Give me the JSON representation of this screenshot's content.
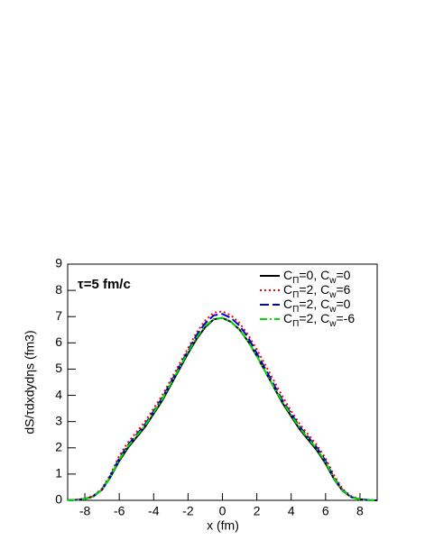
{
  "chart_data": {
    "type": "line",
    "annotation": "τ=5 fm/c",
    "x_label": "x (fm)",
    "y_label": "dS/τdxdydηs (fm3)",
    "xlim": [
      -9,
      9
    ],
    "xticks": [
      -8,
      -6,
      -4,
      -2,
      0,
      2,
      4,
      6,
      8
    ],
    "ylim": [
      0,
      9
    ],
    "yticks": [
      0,
      1,
      2,
      3,
      4,
      5,
      6,
      7,
      8,
      9
    ],
    "legend": "upper right",
    "x": [
      -9,
      -8.5,
      -8,
      -7.5,
      -7,
      -6.5,
      -6,
      -5.5,
      -5,
      -4.5,
      -4,
      -3.5,
      -3,
      -2.5,
      -2,
      -1.5,
      -1,
      -0.5,
      0,
      0.5,
      1,
      1.5,
      2,
      2.5,
      3,
      3.5,
      4,
      4.5,
      5,
      5.5,
      6,
      6.5,
      7,
      7.5,
      8,
      8.5,
      9
    ],
    "series": [
      {
        "name": "CΠ=0, Cw=0",
        "color": "#000000",
        "dash": "solid",
        "values": [
          0,
          0.02,
          0.05,
          0.15,
          0.4,
          0.9,
          1.5,
          2.0,
          2.4,
          2.8,
          3.3,
          3.8,
          4.4,
          5.0,
          5.6,
          6.15,
          6.6,
          6.9,
          6.95,
          6.8,
          6.5,
          6.05,
          5.5,
          4.9,
          4.3,
          3.7,
          3.2,
          2.7,
          2.3,
          1.9,
          1.4,
          0.8,
          0.35,
          0.12,
          0.04,
          0.01,
          0
        ]
      },
      {
        "name": "CΠ=2, Cw=6",
        "color": "#ff0000",
        "dash": "dotted",
        "values": [
          0,
          0.02,
          0.06,
          0.18,
          0.45,
          1.0,
          1.7,
          2.2,
          2.6,
          3.0,
          3.5,
          4.0,
          4.6,
          5.2,
          5.8,
          6.4,
          6.85,
          7.15,
          7.2,
          7.05,
          6.75,
          6.3,
          5.75,
          5.15,
          4.55,
          3.95,
          3.4,
          2.9,
          2.5,
          2.1,
          1.6,
          0.95,
          0.42,
          0.15,
          0.05,
          0.01,
          0
        ]
      },
      {
        "name": "CΠ=2, Cw=0",
        "color": "#0000cc",
        "dash": "dashed",
        "values": [
          0,
          0.02,
          0.05,
          0.16,
          0.42,
          0.95,
          1.6,
          2.1,
          2.5,
          2.9,
          3.4,
          3.9,
          4.5,
          5.1,
          5.7,
          6.3,
          6.75,
          7.05,
          7.1,
          6.95,
          6.65,
          6.2,
          5.6,
          5.0,
          4.4,
          3.8,
          3.3,
          2.8,
          2.4,
          2.0,
          1.5,
          0.85,
          0.38,
          0.13,
          0.04,
          0.01,
          0
        ]
      },
      {
        "name": "CΠ=2, Cw=-6",
        "color": "#00dd00",
        "dash": "dashdot",
        "values": [
          0,
          0.02,
          0.05,
          0.15,
          0.4,
          0.92,
          1.55,
          2.05,
          2.45,
          2.85,
          3.35,
          3.85,
          4.45,
          5.05,
          5.65,
          6.2,
          6.65,
          6.9,
          6.95,
          6.8,
          6.5,
          6.05,
          5.5,
          4.9,
          4.3,
          3.75,
          3.25,
          2.75,
          2.35,
          1.95,
          1.45,
          0.82,
          0.36,
          0.12,
          0.04,
          0.01,
          0
        ]
      }
    ]
  }
}
